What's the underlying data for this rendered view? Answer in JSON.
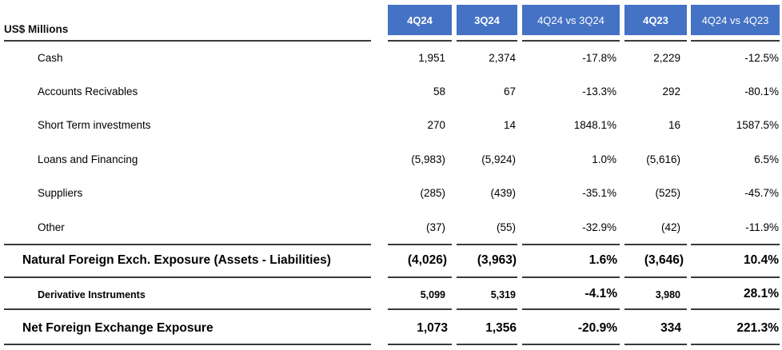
{
  "header": {
    "unit_label": "US$ Millions",
    "columns": [
      "4Q24",
      "3Q24",
      "4Q24 vs 3Q24",
      "4Q23",
      "4Q24 vs 4Q23"
    ]
  },
  "rows": [
    {
      "label": "Cash",
      "values": [
        "1,951",
        "2,374",
        "-17.8%",
        "2,229",
        "-12.5%"
      ]
    },
    {
      "label": "Accounts Recivables",
      "values": [
        "58",
        "67",
        "-13.3%",
        "292",
        "-80.1%"
      ]
    },
    {
      "label": "Short Term investments",
      "values": [
        "270",
        "14",
        "1848.1%",
        "16",
        "1587.5%"
      ]
    },
    {
      "label": "Loans and Financing",
      "values": [
        "(5,983)",
        "(5,924)",
        "1.0%",
        "(5,616)",
        "6.5%"
      ]
    },
    {
      "label": "Suppliers",
      "values": [
        "(285)",
        "(439)",
        "-35.1%",
        "(525)",
        "-45.7%"
      ]
    },
    {
      "label": "Other",
      "values": [
        "(37)",
        "(55)",
        "-32.9%",
        "(42)",
        "-11.9%"
      ]
    }
  ],
  "totals": [
    {
      "label": "Natural Foreign Exch. Exposure (Assets - Liabilities)",
      "values": [
        "(4,026)",
        "(3,963)",
        "1.6%",
        "(3,646)",
        "10.4%"
      ]
    },
    {
      "label": "Derivative Instruments",
      "values": [
        "5,099",
        "5,319",
        "-4.1%",
        "3,980",
        "28.1%"
      ]
    },
    {
      "label": "Net Foreign Exchange Exposure",
      "values": [
        "1,073",
        "1,356",
        "-20.9%",
        "334",
        "221.3%"
      ]
    }
  ],
  "colors": {
    "header_bg": "#4472c4",
    "header_text": "#ffffff",
    "rule": "#3a3a3a"
  }
}
